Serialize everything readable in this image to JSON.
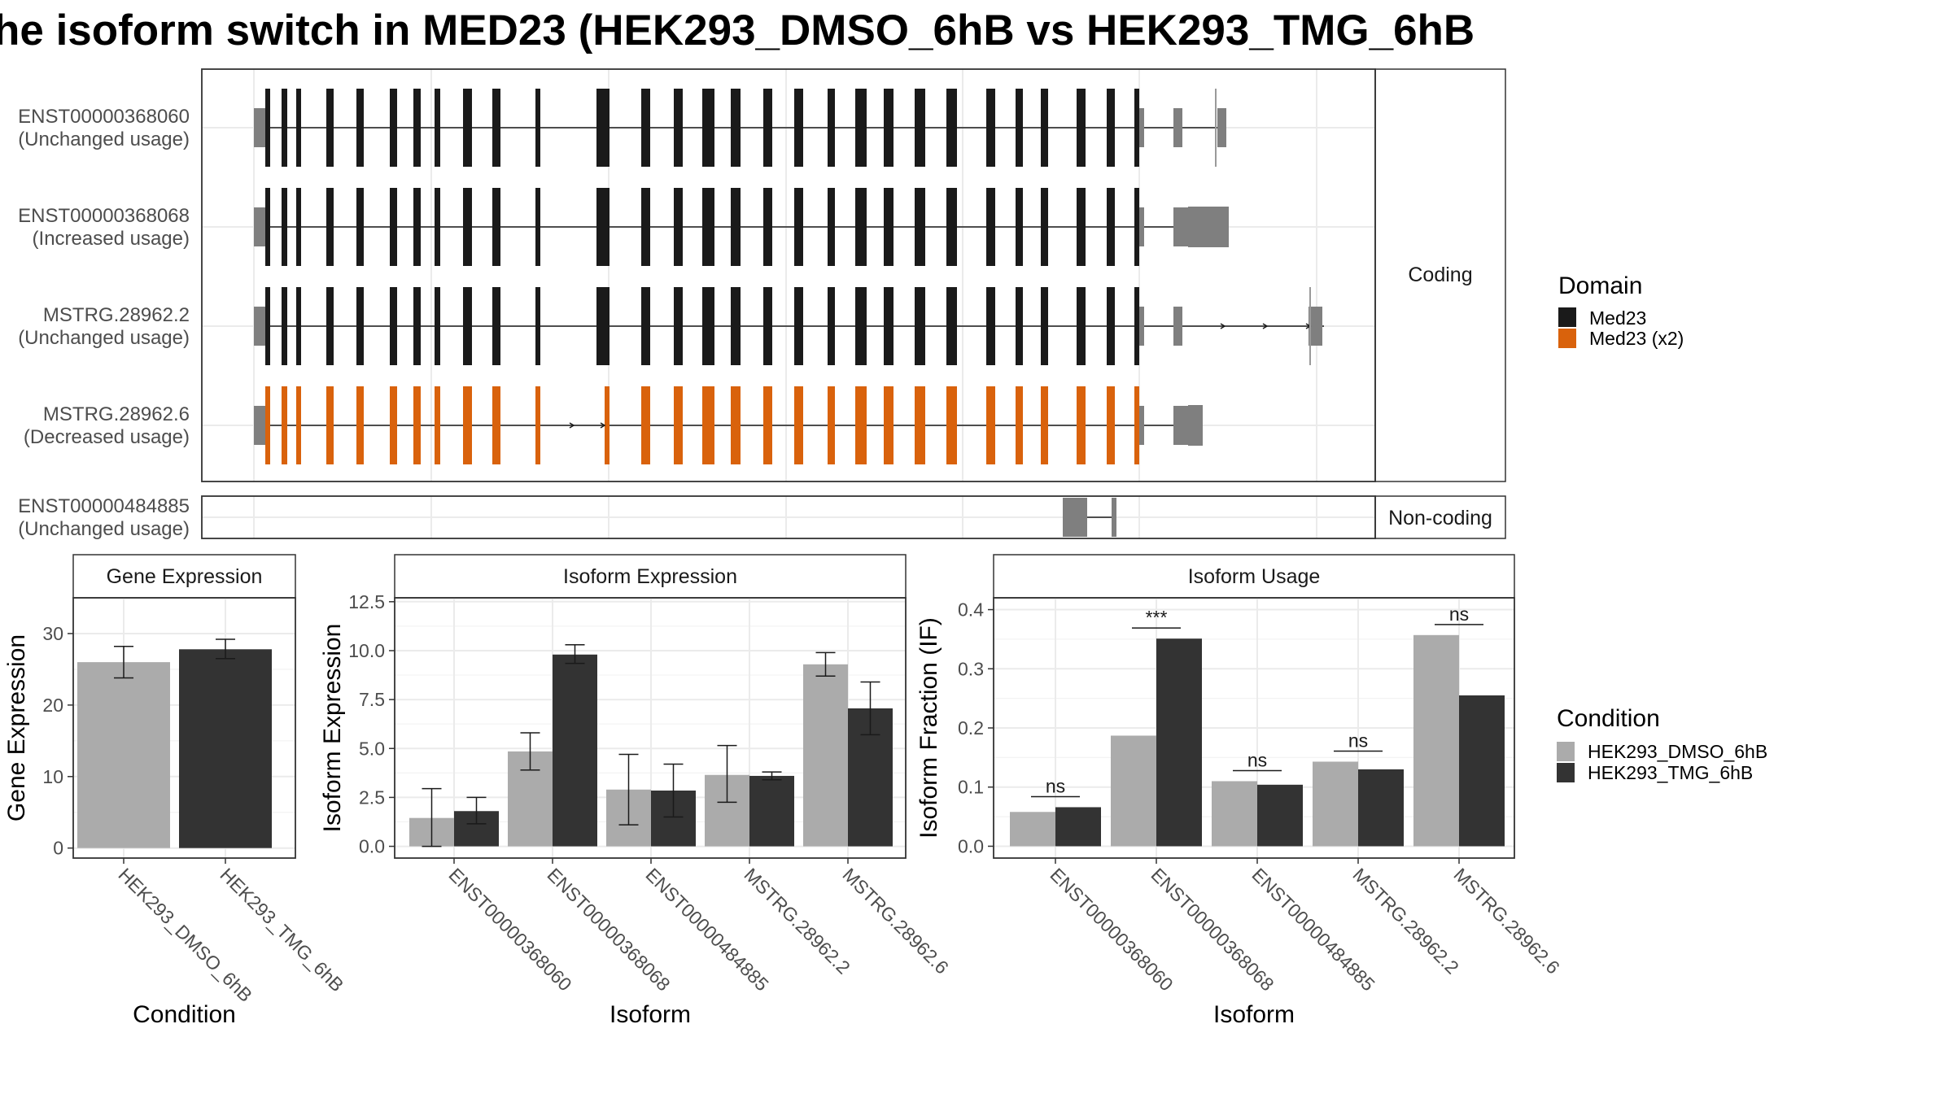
{
  "title": "he isoform switch in MED23 (HEK293_DMSO_6hB vs HEK293_TMG_6hB",
  "colors": {
    "dmso": "#ababab",
    "tmg": "#333333",
    "med23": "#1a1a1a",
    "med23_x2": "#d9620c",
    "utr": "#7f7f7f",
    "frame": "#333333",
    "grid": "#ebebeb",
    "strip_fill": "#ffffff"
  },
  "structure": {
    "coding_strip": "Coding",
    "noncoding_strip": "Non-coding",
    "transcripts": [
      {
        "id": "ENST00000368060",
        "usage": "(Unchanged usage)",
        "domain": "Med23"
      },
      {
        "id": "ENST00000368068",
        "usage": "(Increased usage)",
        "domain": "Med23"
      },
      {
        "id": "MSTRG.28962.2",
        "usage": "(Unchanged usage)",
        "domain": "Med23"
      },
      {
        "id": "MSTRG.28962.6",
        "usage": "(Decreased usage)",
        "domain": "Med23 (x2)"
      }
    ],
    "noncoding": [
      {
        "id": "ENST00000484885",
        "usage": "(Unchanged usage)"
      }
    ]
  },
  "legend_domain": {
    "title": "Domain",
    "items": [
      {
        "label": "Med23",
        "color": "#1a1a1a"
      },
      {
        "label": "Med23 (x2)",
        "color": "#d9620c"
      }
    ]
  },
  "legend_condition": {
    "title": "Condition",
    "items": [
      {
        "label": "HEK293_DMSO_6hB",
        "color": "#ababab"
      },
      {
        "label": "HEK293_TMG_6hB",
        "color": "#333333"
      }
    ]
  },
  "chart_data": [
    {
      "type": "bar",
      "title": "Gene Expression",
      "xlabel": "Condition",
      "ylabel": "Gene Expression",
      "categories": [
        "HEK293_DMSO_6hB",
        "HEK293_TMG_6hB"
      ],
      "values": [
        26.0,
        27.8
      ],
      "errors": [
        [
          23.8,
          28.2
        ],
        [
          26.5,
          29.2
        ]
      ],
      "ylim": [
        -1.4,
        35
      ],
      "yticks": [
        0,
        10,
        20,
        30
      ],
      "grid": true
    },
    {
      "type": "bar",
      "title": "Isoform Expression",
      "xlabel": "Isoform",
      "ylabel": "Isoform Expression",
      "categories": [
        "ENST00000368060",
        "ENST00000368068",
        "ENST00000484885",
        "MSTRG.28962.2",
        "MSTRG.28962.6"
      ],
      "series": [
        {
          "name": "HEK293_DMSO_6hB",
          "values": [
            1.45,
            4.85,
            2.9,
            3.65,
            9.3
          ],
          "errors": [
            [
              0.0,
              2.95
            ],
            [
              3.9,
              5.8
            ],
            [
              1.1,
              4.7
            ],
            [
              2.25,
              5.15
            ],
            [
              8.7,
              9.9
            ]
          ]
        },
        {
          "name": "HEK293_TMG_6hB",
          "values": [
            1.8,
            9.8,
            2.85,
            3.6,
            7.05
          ],
          "errors": [
            [
              1.15,
              2.5
            ],
            [
              9.35,
              10.3
            ],
            [
              1.5,
              4.2
            ],
            [
              3.4,
              3.8
            ],
            [
              5.7,
              8.4
            ]
          ]
        }
      ],
      "ylim": [
        -0.6,
        12.7
      ],
      "yticks": [
        0,
        2.5,
        5,
        7.5,
        10,
        12.5
      ],
      "ytick_labels": [
        "0.0",
        "2.5",
        "5.0",
        "7.5",
        "10.0",
        "12.5"
      ],
      "grid": true
    },
    {
      "type": "bar",
      "title": "Isoform Usage",
      "xlabel": "Isoform",
      "ylabel": "Isoform Fraction (IF)",
      "categories": [
        "ENST00000368060",
        "ENST00000368068",
        "ENST00000484885",
        "MSTRG.28962.2",
        "MSTRG.28962.6"
      ],
      "series": [
        {
          "name": "HEK293_DMSO_6hB",
          "values": [
            0.058,
            0.187,
            0.11,
            0.143,
            0.357
          ]
        },
        {
          "name": "HEK293_TMG_6hB",
          "values": [
            0.066,
            0.351,
            0.104,
            0.13,
            0.255
          ]
        }
      ],
      "significance": [
        "ns",
        "***",
        "ns",
        "ns",
        "ns"
      ],
      "ylim": [
        -0.02,
        0.42
      ],
      "yticks": [
        0,
        0.1,
        0.2,
        0.3,
        0.4
      ],
      "ytick_labels": [
        "0.0",
        "0.1",
        "0.2",
        "0.3",
        "0.4"
      ],
      "grid": true
    }
  ]
}
